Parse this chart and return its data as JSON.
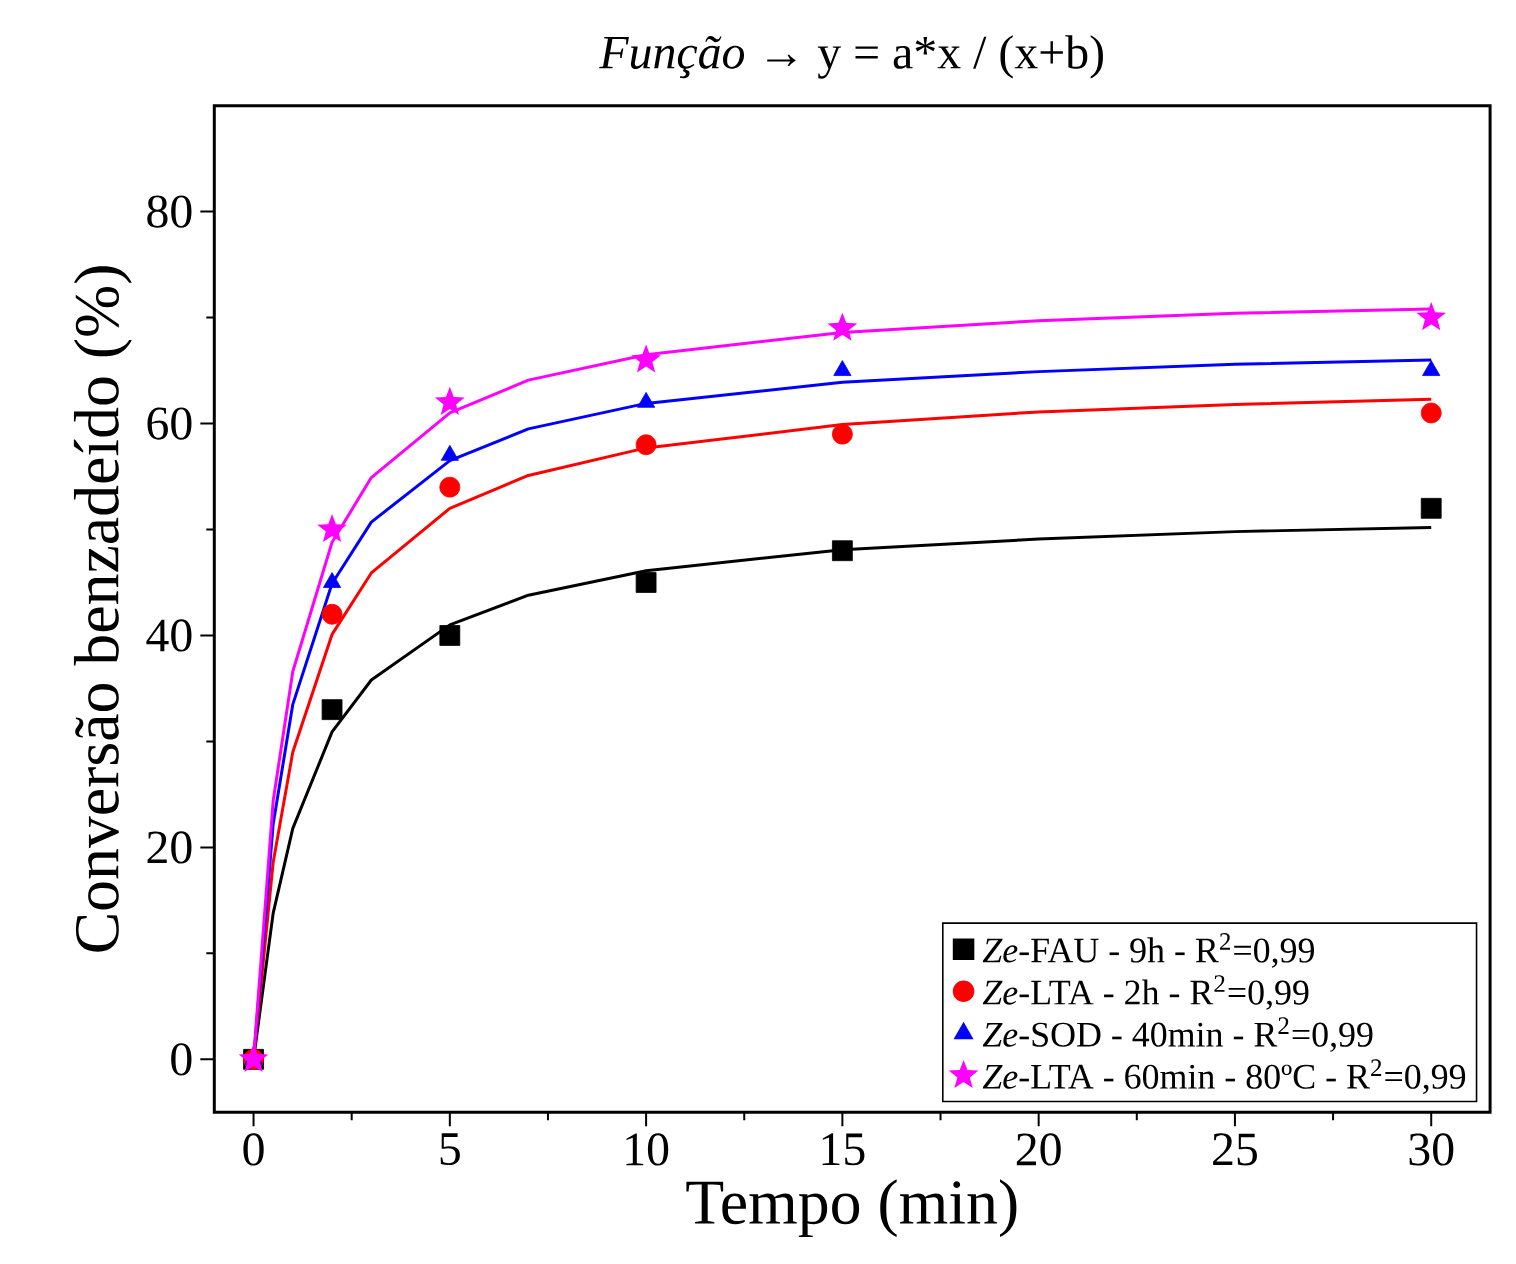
{
  "chart_data": {
    "type": "scatter",
    "title": "*Função* → y = a*x / (x+b)",
    "xlabel": "Tempo (min)",
    "ylabel": "Conversão benzadeído (%)",
    "xlim": [
      -1,
      31.5
    ],
    "ylim": [
      -5,
      90
    ],
    "xticks": [
      0,
      5,
      10,
      15,
      20,
      25,
      30
    ],
    "yticks": [
      0,
      20,
      40,
      60,
      80
    ],
    "grid": false,
    "legend": "bottom right",
    "series": [
      {
        "name": "*Ze*-FAU - 9h - R$^{2}$=0,99",
        "color": "#000000",
        "marker": "square",
        "x": [
          0,
          2,
          5,
          10,
          15,
          30
        ],
        "values": [
          0,
          33,
          40,
          45,
          48,
          52
        ]
      },
      {
        "name": "*Ze*-LTA - 2h - R$^{2}$=0,99",
        "color": "#ff0000",
        "marker": "circle",
        "x": [
          0,
          2,
          5,
          10,
          15,
          30
        ],
        "values": [
          0,
          42,
          54,
          58,
          59,
          61
        ]
      },
      {
        "name": "*Ze*-SOD - 40min - R$^{2}$=0,99",
        "color": "#0000ff",
        "marker": "triangle",
        "x": [
          0,
          2,
          5,
          10,
          15,
          30
        ],
        "values": [
          0,
          45,
          57,
          62,
          65,
          65
        ]
      },
      {
        "name": "*Ze*-LTA - 60min - 80ºC  - R$^{2}$=0,99",
        "color": "#ff00ff",
        "marker": "star",
        "x": [
          0,
          2,
          5,
          10,
          15,
          30
        ],
        "values": [
          0,
          50,
          62,
          66,
          69,
          70
        ]
      },
      {
        "type": "line",
        "color": "#000000",
        "marker": "none",
        "x": [
          0,
          0.5,
          1,
          2,
          3,
          5,
          7,
          10,
          15,
          20,
          25,
          30
        ],
        "values": [
          0,
          13.8,
          21.8,
          30.9,
          35.8,
          41.0,
          43.8,
          46.1,
          48.1,
          49.1,
          49.8,
          50.2
        ]
      },
      {
        "type": "line",
        "color": "#ff0000",
        "marker": "none",
        "x": [
          0,
          0.5,
          1,
          2,
          3,
          5,
          7,
          10,
          15,
          20,
          25,
          30
        ],
        "values": [
          0,
          18.6,
          29.0,
          40.1,
          45.9,
          52.0,
          55.1,
          57.7,
          59.9,
          61.1,
          61.8,
          62.3
        ]
      },
      {
        "type": "line",
        "color": "#0000ff",
        "marker": "none",
        "x": [
          0,
          0.5,
          1,
          2,
          3,
          5,
          7,
          10,
          15,
          20,
          25,
          30
        ],
        "values": [
          0,
          22.2,
          33.5,
          44.9,
          50.7,
          56.5,
          59.5,
          61.9,
          63.9,
          64.9,
          65.6,
          66.0
        ]
      },
      {
        "type": "line",
        "color": "#ff00ff",
        "marker": "none",
        "x": [
          0,
          0.5,
          1,
          2,
          3,
          5,
          7,
          10,
          15,
          20,
          25,
          30
        ],
        "values": [
          0,
          24.4,
          36.6,
          48.8,
          54.9,
          61.0,
          64.1,
          66.5,
          68.6,
          69.7,
          70.4,
          70.8
        ]
      }
    ]
  }
}
